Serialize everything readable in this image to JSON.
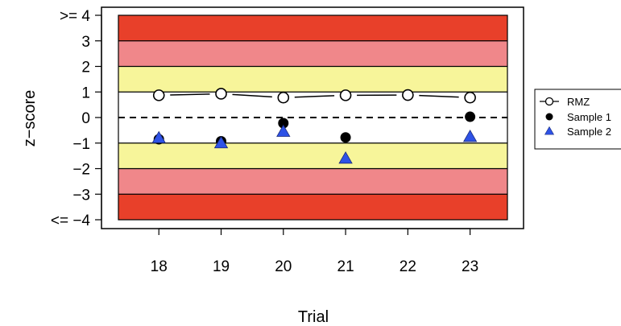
{
  "chart_data": {
    "type": "scatter",
    "xlabel": "Trial",
    "ylabel": "z−score",
    "x": [
      18,
      19,
      20,
      21,
      22,
      23
    ],
    "xlim": [
      17.35,
      23.6
    ],
    "ylim": [
      -4,
      4
    ],
    "y_ticks": [
      {
        "value": 4,
        "label": ">= 4"
      },
      {
        "value": 3,
        "label": "3"
      },
      {
        "value": 2,
        "label": "2"
      },
      {
        "value": 1,
        "label": "1"
      },
      {
        "value": 0,
        "label": "0"
      },
      {
        "value": -1,
        "label": "−1"
      },
      {
        "value": -2,
        "label": "−2"
      },
      {
        "value": -3,
        "label": "−3"
      },
      {
        "value": -4,
        "label": "<= −4"
      }
    ],
    "x_ticks": [
      "18",
      "19",
      "20",
      "21",
      "22",
      "23"
    ],
    "bands": [
      {
        "from": 3,
        "to": 4,
        "color": "#e8402a"
      },
      {
        "from": 2,
        "to": 3,
        "color": "#f0878a"
      },
      {
        "from": 1,
        "to": 2,
        "color": "#f7f59a"
      },
      {
        "from": -1,
        "to": 1,
        "color": "#ffffff"
      },
      {
        "from": -2,
        "to": -1,
        "color": "#f7f59a"
      },
      {
        "from": -3,
        "to": -2,
        "color": "#f0878a"
      },
      {
        "from": -4,
        "to": -3,
        "color": "#e8402a"
      }
    ],
    "band_lines": [
      3,
      2,
      1,
      -1,
      -2,
      -3
    ],
    "reference_line": 0,
    "series": [
      {
        "name": "RMZ",
        "marker": "open-circle-line",
        "color": "#000000",
        "values": [
          0.87,
          0.93,
          0.78,
          0.87,
          0.88,
          0.78
        ]
      },
      {
        "name": "Sample 1",
        "marker": "filled-circle",
        "color": "#000000",
        "values": [
          -0.85,
          -0.93,
          -0.22,
          -0.78,
          null,
          0.03
        ]
      },
      {
        "name": "Sample 2",
        "marker": "triangle",
        "color": "#2e52e6",
        "values": [
          -0.8,
          -1.0,
          -0.55,
          -1.6,
          null,
          -0.75
        ]
      }
    ],
    "legend": "right"
  }
}
